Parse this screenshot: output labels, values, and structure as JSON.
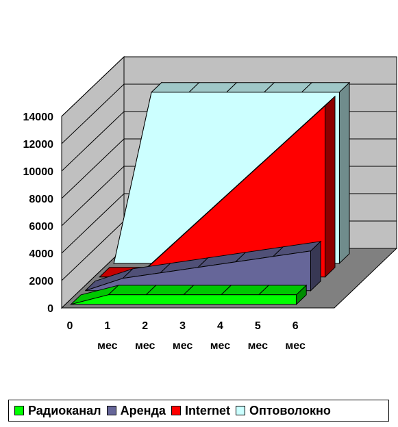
{
  "chart_data": {
    "type": "area",
    "style": "3d",
    "categories": [
      "0",
      "1 мес",
      "2 мес",
      "3 мес",
      "4 мес",
      "5 мес",
      "6 мес"
    ],
    "category_lines": [
      [
        "0"
      ],
      [
        "1",
        "мес"
      ],
      [
        "2",
        "мес"
      ],
      [
        "3",
        "мес"
      ],
      [
        "4",
        "мес"
      ],
      [
        "5",
        "мес"
      ],
      [
        "6",
        "мес"
      ]
    ],
    "ylim": [
      0,
      14000
    ],
    "yticks": [
      "0",
      "2000",
      "4000",
      "6000",
      "8000",
      "10000",
      "12000",
      "14000"
    ],
    "grid": true,
    "legend_position": "bottom",
    "series": [
      {
        "name": "Радиоканал",
        "color": "#00ff00",
        "values": [
          0,
          700,
          700,
          700,
          700,
          700,
          700
        ]
      },
      {
        "name": "Аренда",
        "color": "#666699",
        "values": [
          0,
          900,
          1300,
          1700,
          2100,
          2500,
          2900
        ]
      },
      {
        "name": "Internet",
        "color": "#ff0000",
        "values": [
          0,
          0,
          2500,
          5000,
          7500,
          10000,
          12500
        ]
      },
      {
        "name": "Оптоволокно",
        "color": "#ccffff",
        "values": [
          0,
          12500,
          12500,
          12500,
          12500,
          12500,
          12500
        ]
      }
    ]
  },
  "colors": {
    "walls": "#c0c0c0",
    "floor": "#808080",
    "grid": "#000000"
  }
}
